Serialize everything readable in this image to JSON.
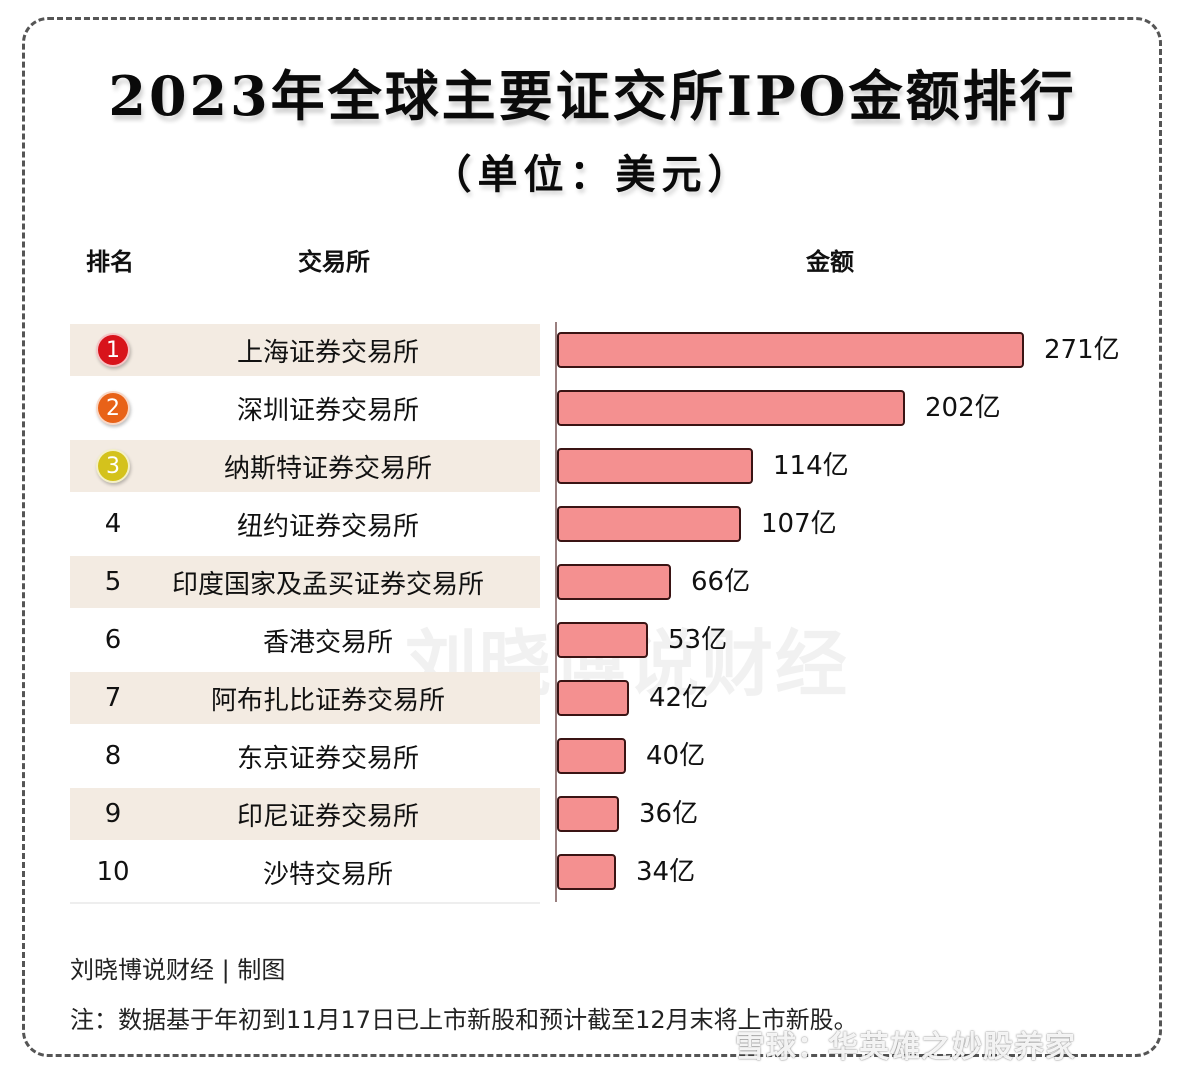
{
  "title": "2023年全球主要证交所IPO金额排行",
  "subtitle": "（单位：美元）",
  "headers": {
    "rank": "排名",
    "exchange": "交易所",
    "amount": "金额"
  },
  "rows": [
    {
      "rank": "1",
      "exchange": "上海证券交易所",
      "value": 271,
      "label": "271亿",
      "medal_color": "#d8131b"
    },
    {
      "rank": "2",
      "exchange": "深圳证券交易所",
      "value": 202,
      "label": "202亿",
      "medal_color": "#e86218"
    },
    {
      "rank": "3",
      "exchange": "纳斯特证券交易所",
      "value": 114,
      "label": "114亿",
      "medal_color": "#d4c21c"
    },
    {
      "rank": "4",
      "exchange": "纽约证券交易所",
      "value": 107,
      "label": "107亿"
    },
    {
      "rank": "5",
      "exchange": "印度国家及孟买证券交易所",
      "value": 66,
      "label": "66亿"
    },
    {
      "rank": "6",
      "exchange": "香港交易所",
      "value": 53,
      "label": "53亿"
    },
    {
      "rank": "7",
      "exchange": "阿布扎比证券交易所",
      "value": 42,
      "label": "42亿"
    },
    {
      "rank": "8",
      "exchange": "东京证券交易所",
      "value": 40,
      "label": "40亿"
    },
    {
      "rank": "9",
      "exchange": "印尼证券交易所",
      "value": 36,
      "label": "36亿"
    },
    {
      "rank": "10",
      "exchange": "沙特交易所",
      "value": 34,
      "label": "34亿"
    }
  ],
  "colors": {
    "bar_fill": "#f49090",
    "bar_border": "#3a1414",
    "row_shade": "#f3ebe2"
  },
  "watermark": "刘晓博说财经",
  "credit": "刘晓博说财经 | 制图",
  "note": "注：数据基于年初到11月17日已上市新股和预计截至12月末将上市新股。",
  "platform_watermark": "雪球：华英雄之妙股养家",
  "chart_data": {
    "type": "bar",
    "orientation": "horizontal",
    "title": "2023年全球主要证交所IPO金额排行",
    "subtitle": "（单位：美元）",
    "categories": [
      "上海证券交易所",
      "深圳证券交易所",
      "纳斯特证券交易所",
      "纽约证券交易所",
      "印度国家及孟买证券交易所",
      "香港交易所",
      "阿布扎比证券交易所",
      "东京证券交易所",
      "印尼证券交易所",
      "沙特交易所"
    ],
    "values": [
      271,
      202,
      114,
      107,
      66,
      53,
      42,
      40,
      36,
      34
    ],
    "value_labels": [
      "271亿",
      "202亿",
      "114亿",
      "107亿",
      "66亿",
      "53亿",
      "42亿",
      "40亿",
      "36亿",
      "34亿"
    ],
    "unit": "亿美元",
    "xlabel": "金额",
    "ylabel": "交易所",
    "grid": false,
    "legend": false
  }
}
